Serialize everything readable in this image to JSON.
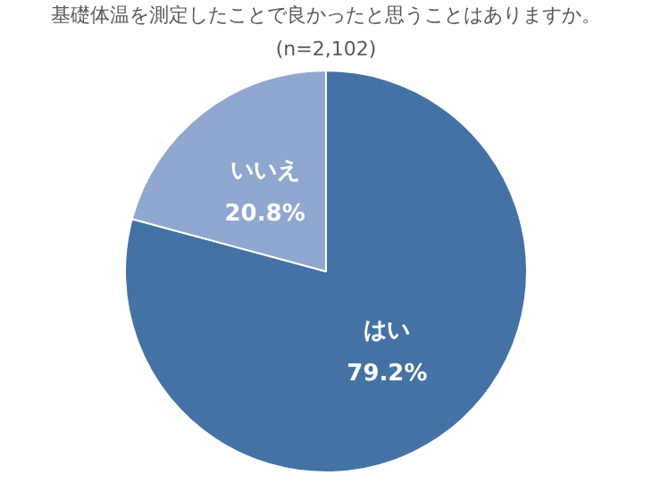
{
  "chart_data": {
    "type": "pie",
    "title": "基礎体温を測定したことで良かったと思うことはありますか。",
    "subtitle": "(n=2,102)",
    "categories": [
      "はい",
      "いいえ"
    ],
    "values": [
      79.2,
      20.8
    ],
    "value_labels": [
      "79.2%",
      "20.8%"
    ],
    "colors": [
      "#4472a4",
      "#90a8cf"
    ],
    "legend": false
  }
}
